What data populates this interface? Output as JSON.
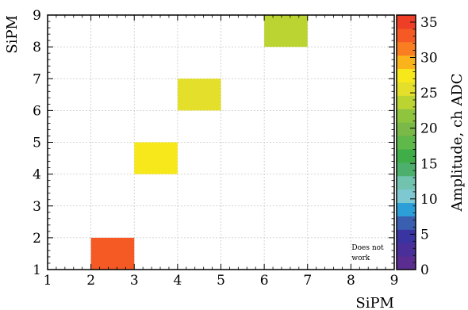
{
  "chart_data": {
    "type": "heatmap",
    "xlabel": "SiPM",
    "ylabel": "SiPM",
    "colorbar_label": "Amplitude, ch ADC",
    "xlim": [
      1,
      9
    ],
    "ylim": [
      1,
      9
    ],
    "x_ticks": [
      "1",
      "2",
      "3",
      "4",
      "5",
      "6",
      "7",
      "8",
      "9"
    ],
    "y_ticks": [
      "1",
      "2",
      "3",
      "4",
      "5",
      "6",
      "7",
      "8",
      "9"
    ],
    "colorbar_range": [
      0,
      36
    ],
    "colorbar_ticks": [
      "0",
      "5",
      "10",
      "15",
      "20",
      "25",
      "30",
      "35"
    ],
    "grid": true,
    "cells": [
      {
        "x": 2,
        "y": 1,
        "value": 33
      },
      {
        "x": 3,
        "y": 4,
        "value": 28
      },
      {
        "x": 4,
        "y": 6,
        "value": 26
      },
      {
        "x": 6,
        "y": 8,
        "value": 24
      }
    ],
    "annotation": {
      "lines": [
        "Does not",
        "work"
      ],
      "x": 8,
      "y": 1
    },
    "colorbar_colors": [
      "#5c2d91",
      "#4a2f9a",
      "#3a34a3",
      "#3a5fb0",
      "#2d9fd8",
      "#7ec9d1",
      "#72c2b0",
      "#4caf6b",
      "#3fae49",
      "#5fb84a",
      "#7ab847",
      "#8fc43f",
      "#bcd432",
      "#e3df2a",
      "#f7e81c",
      "#fbb31c",
      "#f97e22",
      "#f55a24",
      "#ef3e26"
    ]
  }
}
